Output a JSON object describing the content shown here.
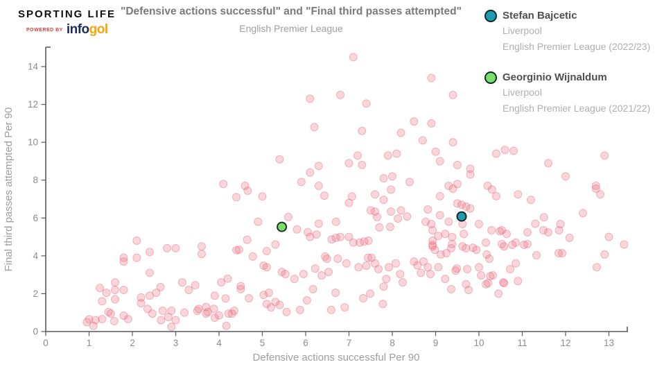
{
  "brand": {
    "name": "SPORTING LIFE",
    "powered_by": "POWERED BY",
    "infogol_prefix": "info",
    "infogol_suffix": "gol",
    "colors": {
      "wordmark": "#0c0c0c",
      "powered_by": "#e03c31",
      "info": "#1c2b5a",
      "gol": "#f2a70c"
    }
  },
  "legend": {
    "items": [
      {
        "key": "bajcetic",
        "name": "Stefan Bajcetic",
        "team": "Liverpool",
        "league": "English Premier League (2022/23)",
        "color": "#1f9daf"
      },
      {
        "key": "wijnaldum",
        "name": "Georginio Wijnaldum",
        "team": "Liverpool",
        "league": "English Premier League (2021/22)",
        "color": "#7ade69"
      }
    ]
  },
  "chart_data": {
    "type": "scatter",
    "title": "\"Defensive actions successful\" and \"Final third passes attempted\"",
    "subtitle": "English Premier League",
    "xlabel": "Defensive actions successful Per 90",
    "ylabel": "Final third passes attempted Per 90",
    "xlim": [
      0,
      13.4
    ],
    "ylim": [
      0,
      15
    ],
    "xticks": [
      0,
      1,
      2,
      3,
      4,
      5,
      6,
      7,
      8,
      9,
      10,
      11,
      12,
      13
    ],
    "yticks": [
      0,
      2,
      4,
      6,
      8,
      10,
      12,
      14
    ],
    "grid": false,
    "legend_position": "top-right",
    "axis_color": "#58595b",
    "tick_label_color": "#8c8c8c",
    "series": [
      {
        "key": "league-players",
        "name": "English Premier League players",
        "color": "#e86a7e",
        "highlight": false,
        "points": [
          [
            7.1,
            14.5
          ],
          [
            8.9,
            13.4
          ],
          [
            9.4,
            12.5
          ],
          [
            6.8,
            12.5
          ],
          [
            6.1,
            12.3
          ],
          [
            7.4,
            12.05
          ],
          [
            8.5,
            11.1
          ],
          [
            8.9,
            11.0
          ],
          [
            6.2,
            10.8
          ],
          [
            7.3,
            10.6
          ],
          [
            8.2,
            10.5
          ],
          [
            8.7,
            10.1
          ],
          [
            9.4,
            10.0
          ],
          [
            9.0,
            9.5
          ],
          [
            8.1,
            9.4
          ],
          [
            10.4,
            9.4
          ],
          [
            12.9,
            9.3
          ],
          [
            7.9,
            9.3
          ],
          [
            7.2,
            9.3
          ],
          [
            5.4,
            9.1
          ],
          [
            9.1,
            9.0
          ],
          [
            7.0,
            8.9
          ],
          [
            11.6,
            8.9
          ],
          [
            7.3,
            8.8
          ],
          [
            9.5,
            8.8
          ],
          [
            6.3,
            8.75
          ],
          [
            9.8,
            8.6
          ],
          [
            6.1,
            8.4
          ],
          [
            9.8,
            8.3
          ],
          [
            8.0,
            8.2
          ],
          [
            12.0,
            8.2
          ],
          [
            7.8,
            8.1
          ],
          [
            10.6,
            9.6
          ],
          [
            10.8,
            9.55
          ],
          [
            5.9,
            7.9
          ],
          [
            8.4,
            7.9
          ],
          [
            9.5,
            7.8
          ],
          [
            4.6,
            7.7
          ],
          [
            6.3,
            7.7
          ],
          [
            9.3,
            7.7
          ],
          [
            10.2,
            7.7
          ],
          [
            12.7,
            7.7
          ],
          [
            4.1,
            7.8
          ],
          [
            9.4,
            7.55
          ],
          [
            12.7,
            7.55
          ],
          [
            10.3,
            7.5
          ],
          [
            7.97,
            7.5
          ],
          [
            4.66,
            7.44
          ],
          [
            7.6,
            7.25
          ],
          [
            10.9,
            7.25
          ],
          [
            12.8,
            7.25
          ],
          [
            9.1,
            7.15
          ],
          [
            10.4,
            7.15
          ],
          [
            5.0,
            7.14
          ],
          [
            6.43,
            7.18
          ],
          [
            7.07,
            7.14
          ],
          [
            4.4,
            7.1
          ],
          [
            11.2,
            6.96
          ],
          [
            7.8,
            6.96
          ],
          [
            7.0,
            6.8
          ],
          [
            9.5,
            6.77
          ],
          [
            9.6,
            6.7
          ],
          [
            9.7,
            6.6
          ],
          [
            9.8,
            6.5
          ],
          [
            8.82,
            6.45
          ],
          [
            7.5,
            6.4
          ],
          [
            8.2,
            6.4
          ],
          [
            7.6,
            6.34
          ],
          [
            7.97,
            6.34
          ],
          [
            12.4,
            6.26
          ],
          [
            9.1,
            6.15
          ],
          [
            8.34,
            6.08
          ],
          [
            7.65,
            6.05
          ],
          [
            11.5,
            6.04
          ],
          [
            8.13,
            5.97
          ],
          [
            4.9,
            5.8
          ],
          [
            6.7,
            5.8
          ],
          [
            8.77,
            5.8
          ],
          [
            9.3,
            5.8
          ],
          [
            6.3,
            5.7
          ],
          [
            11.3,
            5.7
          ],
          [
            8.9,
            5.68
          ],
          [
            9.62,
            5.68
          ],
          [
            10.0,
            5.68
          ],
          [
            11.88,
            5.68
          ],
          [
            5.6,
            6.05
          ],
          [
            7.7,
            5.5
          ],
          [
            7.95,
            5.53
          ],
          [
            5.8,
            5.4
          ],
          [
            8.93,
            5.35
          ],
          [
            10.29,
            5.35
          ],
          [
            10.53,
            5.35
          ],
          [
            11.49,
            5.35
          ],
          [
            11.85,
            5.35
          ],
          [
            10.48,
            5.3
          ],
          [
            6.05,
            5.25
          ],
          [
            11.12,
            5.24
          ],
          [
            11.6,
            5.24
          ],
          [
            9.22,
            5.16
          ],
          [
            9.65,
            5.16
          ],
          [
            10.64,
            5.16
          ],
          [
            6.25,
            5.13
          ],
          [
            9.06,
            5.05
          ],
          [
            6.1,
            5.0
          ],
          [
            6.8,
            5.0
          ],
          [
            7.0,
            5.0
          ],
          [
            9.38,
            5.0
          ],
          [
            13.0,
            5.0
          ],
          [
            12.09,
            4.95
          ],
          [
            6.7,
            4.95
          ],
          [
            6.6,
            4.87
          ],
          [
            4.65,
            4.85
          ],
          [
            7.45,
            4.8
          ],
          [
            8.93,
            4.8
          ],
          [
            2.1,
            4.8
          ],
          [
            7.35,
            4.76
          ],
          [
            7.1,
            4.7
          ],
          [
            7.25,
            4.7
          ],
          [
            10.16,
            4.7
          ],
          [
            10.85,
            4.7
          ],
          [
            9.38,
            4.62
          ],
          [
            10.53,
            4.62
          ],
          [
            11.12,
            4.62
          ],
          [
            13.35,
            4.6
          ],
          [
            5.3,
            4.6
          ],
          [
            8.93,
            4.58
          ],
          [
            10.77,
            4.58
          ],
          [
            11.04,
            4.58
          ],
          [
            3.6,
            4.5
          ],
          [
            9.62,
            4.5
          ],
          [
            10.58,
            4.5
          ],
          [
            8.93,
            4.5
          ],
          [
            2.8,
            4.4
          ],
          [
            3.0,
            4.4
          ],
          [
            9.36,
            4.4
          ],
          [
            9.7,
            4.4
          ],
          [
            9.86,
            4.43
          ],
          [
            4.4,
            4.3
          ],
          [
            4.46,
            4.32
          ],
          [
            8.98,
            4.32
          ],
          [
            9.94,
            4.32
          ],
          [
            5.1,
            4.25
          ],
          [
            2.4,
            4.2
          ],
          [
            9.25,
            4.14
          ],
          [
            11.84,
            4.14
          ],
          [
            11.92,
            4.14
          ],
          [
            3.6,
            4.1
          ],
          [
            9.12,
            4.07
          ],
          [
            10.18,
            4.07
          ],
          [
            12.9,
            4.07
          ],
          [
            11.33,
            4.03
          ],
          [
            1.8,
            3.9
          ],
          [
            2.1,
            3.9
          ],
          [
            7.44,
            3.9
          ],
          [
            7.52,
            3.9
          ],
          [
            4.78,
            3.96
          ],
          [
            6.45,
            3.96
          ],
          [
            10.24,
            3.85
          ],
          [
            6.49,
            3.85
          ],
          [
            6.74,
            3.85
          ],
          [
            1.8,
            3.7
          ],
          [
            8.5,
            3.7
          ],
          [
            8.72,
            3.7
          ],
          [
            6.94,
            3.6
          ],
          [
            7.6,
            3.6
          ],
          [
            8.08,
            3.6
          ],
          [
            10.85,
            3.6
          ],
          [
            8.58,
            3.5
          ],
          [
            5.03,
            3.48
          ],
          [
            7.4,
            3.48
          ],
          [
            5.1,
            3.4
          ],
          [
            7.22,
            3.4
          ],
          [
            7.92,
            3.4
          ],
          [
            8.82,
            3.4
          ],
          [
            9.06,
            3.4
          ],
          [
            10.0,
            3.4
          ],
          [
            12.72,
            3.4
          ],
          [
            6.22,
            3.33
          ],
          [
            9.49,
            3.33
          ],
          [
            9.73,
            3.3
          ],
          [
            10.72,
            3.3
          ],
          [
            7.68,
            3.3
          ],
          [
            9.46,
            3.22
          ],
          [
            5.45,
            3.15
          ],
          [
            6.53,
            3.15
          ],
          [
            2.4,
            3.1
          ],
          [
            8.66,
            3.1
          ],
          [
            5.53,
            3.04
          ],
          [
            5.95,
            3.04
          ],
          [
            8.18,
            3.04
          ],
          [
            8.88,
            3.04
          ],
          [
            6.37,
            2.97
          ],
          [
            10.05,
            2.97
          ],
          [
            10.32,
            2.97
          ],
          [
            10.26,
            2.93
          ],
          [
            5.74,
            2.78
          ],
          [
            7.86,
            2.78
          ],
          [
            9.22,
            2.78
          ],
          [
            10.9,
            2.67
          ],
          [
            3.15,
            2.6
          ],
          [
            1.6,
            2.6
          ],
          [
            8.24,
            2.6
          ],
          [
            10.56,
            2.6
          ],
          [
            4.05,
            2.6
          ],
          [
            10.58,
            2.56
          ],
          [
            10.21,
            2.56
          ],
          [
            9.7,
            2.5
          ],
          [
            10.16,
            2.5
          ],
          [
            3.45,
            2.45
          ],
          [
            4.5,
            2.4
          ],
          [
            7.8,
            2.38
          ],
          [
            2.65,
            2.35
          ],
          [
            4.2,
            2.8
          ],
          [
            1.25,
            2.3
          ],
          [
            9.36,
            2.24
          ],
          [
            4.5,
            2.24
          ],
          [
            6.17,
            2.24
          ],
          [
            1.8,
            2.2
          ],
          [
            1.6,
            2.2
          ],
          [
            3.3,
            2.2
          ],
          [
            9.76,
            2.2
          ],
          [
            5.15,
            2.05
          ],
          [
            6.69,
            2.05
          ],
          [
            1.4,
            2.05
          ],
          [
            2.55,
            2.05
          ],
          [
            10.45,
            2.0
          ],
          [
            7.49,
            2.0
          ],
          [
            5.03,
            1.94
          ],
          [
            2.4,
            1.9
          ],
          [
            3.9,
            1.9
          ],
          [
            2.2,
            1.8
          ],
          [
            4.69,
            1.76
          ],
          [
            7.33,
            1.76
          ],
          [
            4.15,
            1.75
          ],
          [
            6.03,
            1.65
          ],
          [
            1.6,
            1.7
          ],
          [
            1.3,
            1.6
          ],
          [
            5.3,
            1.57
          ],
          [
            2.2,
            1.5
          ],
          [
            5.1,
            1.46
          ],
          [
            7.78,
            1.46
          ],
          [
            5.4,
            1.4
          ],
          [
            3.7,
            1.3
          ],
          [
            5.2,
            1.28
          ],
          [
            6.9,
            1.28
          ],
          [
            2.35,
            1.2
          ],
          [
            3.53,
            1.2
          ],
          [
            3.88,
            1.2
          ],
          [
            4.35,
            1.1
          ],
          [
            2.7,
            1.1
          ],
          [
            2.9,
            1.1
          ],
          [
            3.5,
            1.1
          ],
          [
            5.87,
            1.14
          ],
          [
            6.59,
            1.14
          ],
          [
            1.45,
            1.03
          ],
          [
            3.2,
            1.0
          ],
          [
            3.74,
            1.03
          ],
          [
            5.56,
            1.03
          ],
          [
            3.7,
            0.95
          ],
          [
            4.3,
            0.95
          ],
          [
            2.46,
            0.95
          ],
          [
            1.5,
            0.95
          ],
          [
            4.22,
            0.95
          ],
          [
            3.9,
            0.73
          ],
          [
            4.0,
            0.85
          ],
          [
            1.8,
            0.84
          ],
          [
            2.83,
            0.77
          ],
          [
            1.3,
            0.66
          ],
          [
            1.9,
            0.66
          ],
          [
            1.0,
            0.65
          ],
          [
            2.66,
            0.6
          ],
          [
            3.0,
            0.6
          ],
          [
            1.15,
            0.6
          ],
          [
            1.58,
            0.55
          ],
          [
            0.95,
            0.5
          ],
          [
            4.17,
            0.3
          ],
          [
            1.1,
            0.3
          ],
          [
            2.9,
            0.25
          ]
        ]
      },
      {
        "key": "wijnaldum",
        "name": "Georginio Wijnaldum",
        "color": "#7ade69",
        "outline": "#213226",
        "highlight": true,
        "points": [
          [
            5.45,
            5.53
          ]
        ]
      },
      {
        "key": "bajcetic",
        "name": "Stefan Bajcetic",
        "color": "#1f9daf",
        "outline": "#14262e",
        "highlight": true,
        "points": [
          [
            9.6,
            6.08
          ]
        ]
      }
    ]
  }
}
